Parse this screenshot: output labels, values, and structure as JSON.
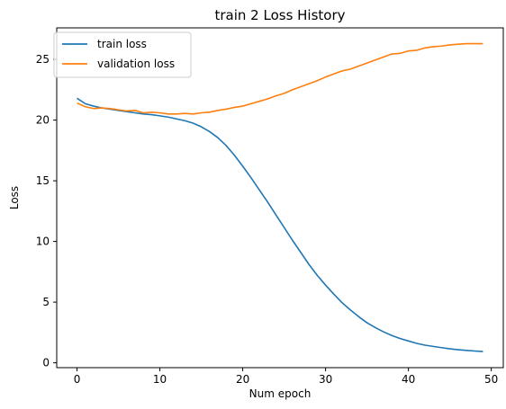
{
  "chart_data": {
    "type": "line",
    "title": "train 2 Loss History",
    "xlabel": "Num epoch",
    "ylabel": "Loss",
    "xlim": [
      -2.45,
      51.45
    ],
    "ylim": [
      -0.4,
      27.6
    ],
    "xticks": [
      0,
      10,
      20,
      30,
      40,
      50
    ],
    "yticks": [
      0,
      5,
      10,
      15,
      20,
      25
    ],
    "grid": false,
    "legend_position": "top-left",
    "x": [
      0,
      1,
      2,
      3,
      4,
      5,
      6,
      7,
      8,
      9,
      10,
      11,
      12,
      13,
      14,
      15,
      16,
      17,
      18,
      19,
      20,
      21,
      22,
      23,
      24,
      25,
      26,
      27,
      28,
      29,
      30,
      31,
      32,
      33,
      34,
      35,
      36,
      37,
      38,
      39,
      40,
      41,
      42,
      43,
      44,
      45,
      46,
      47,
      48,
      49
    ],
    "series": [
      {
        "name": "train loss",
        "color": "#1f77b4",
        "values": [
          21.8,
          21.35,
          21.15,
          21.0,
          20.9,
          20.8,
          20.7,
          20.6,
          20.5,
          20.45,
          20.35,
          20.25,
          20.1,
          19.95,
          19.75,
          19.45,
          19.05,
          18.55,
          17.9,
          17.1,
          16.2,
          15.25,
          14.25,
          13.25,
          12.2,
          11.15,
          10.1,
          9.1,
          8.1,
          7.2,
          6.4,
          5.65,
          4.95,
          4.35,
          3.8,
          3.3,
          2.9,
          2.55,
          2.25,
          2.0,
          1.8,
          1.6,
          1.45,
          1.35,
          1.25,
          1.15,
          1.08,
          1.02,
          0.97,
          0.93
        ]
      },
      {
        "name": "validation loss",
        "color": "#ff7f0e",
        "values": [
          21.4,
          21.1,
          20.95,
          21.0,
          20.95,
          20.85,
          20.75,
          20.8,
          20.6,
          20.65,
          20.6,
          20.5,
          20.5,
          20.55,
          20.5,
          20.6,
          20.65,
          20.8,
          20.9,
          21.05,
          21.15,
          21.35,
          21.55,
          21.75,
          22.0,
          22.2,
          22.5,
          22.75,
          23.0,
          23.25,
          23.55,
          23.8,
          24.05,
          24.2,
          24.45,
          24.7,
          24.95,
          25.2,
          25.45,
          25.5,
          25.7,
          25.75,
          25.95,
          26.05,
          26.1,
          26.2,
          26.25,
          26.3,
          26.3,
          26.3
        ]
      }
    ]
  }
}
